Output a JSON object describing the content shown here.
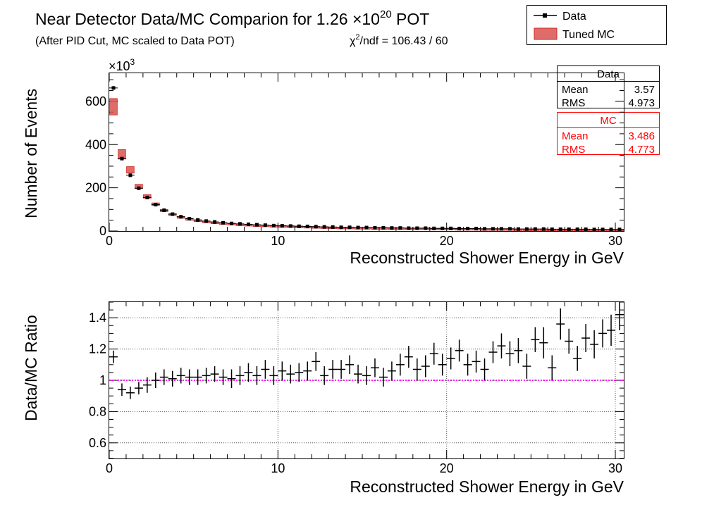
{
  "header": {
    "title_main": "Near Detector Data/MC Comparion for 1.26 ×10",
    "title_exp": "20",
    "title_tail": " POT",
    "subtitle": "(After PID Cut, MC scaled to Data POT)",
    "chi2_symbol": "χ",
    "chi2_exp": "2",
    "chi2_text": "/ndf = 106.43 / 60"
  },
  "legend": {
    "data_label": "Data",
    "mc_label": "Tuned MC"
  },
  "stats": {
    "data": {
      "title": "Data",
      "mean_label": "Mean",
      "mean": "3.57",
      "rms_label": "RMS",
      "rms": "4.973"
    },
    "mc": {
      "title": "MC",
      "mean_label": "Mean",
      "mean": "3.486",
      "rms_label": "RMS",
      "rms": "4.773"
    }
  },
  "colors": {
    "data": "#000000",
    "mc_fill": "#d9534f",
    "mc_line": "#cc0000",
    "unity_line": "#ff00ff",
    "stats_mc_text": "#ff0000"
  },
  "chart_data": [
    {
      "type": "scatter",
      "name": "spectrum",
      "xlabel": "Reconstructed Shower Energy in GeV",
      "ylabel": "Number of Events",
      "y_multiplier_label": "×10",
      "y_multiplier_exp": "3",
      "xlim": [
        0,
        30.5
      ],
      "ylim": [
        0,
        730
      ],
      "xticks": [
        0,
        10,
        20,
        30
      ],
      "yticks": [
        0,
        200,
        400,
        600
      ],
      "x": [
        0.25,
        0.75,
        1.25,
        1.75,
        2.25,
        2.75,
        3.25,
        3.75,
        4.25,
        4.75,
        5.25,
        5.75,
        6.25,
        6.75,
        7.25,
        7.75,
        8.25,
        8.75,
        9.25,
        9.75,
        10.25,
        10.75,
        11.25,
        11.75,
        12.25,
        12.75,
        13.25,
        13.75,
        14.25,
        14.75,
        15.25,
        15.75,
        16.25,
        16.75,
        17.25,
        17.75,
        18.25,
        18.75,
        19.25,
        19.75,
        20.25,
        20.75,
        21.25,
        21.75,
        22.25,
        22.75,
        23.25,
        23.75,
        24.25,
        24.75,
        25.25,
        25.75,
        26.25,
        26.75,
        27.25,
        27.75,
        28.25,
        28.75,
        29.25,
        29.75,
        30.25
      ],
      "series": [
        {
          "name": "Data",
          "values": [
            662,
            335,
            258,
            198,
            155,
            122,
            96,
            78,
            66,
            57,
            51,
            46,
            42,
            38,
            35,
            33,
            31,
            29,
            27,
            25,
            24,
            23,
            22,
            21,
            20,
            19,
            18,
            17,
            17,
            16,
            16,
            15,
            15,
            14,
            14,
            13,
            13,
            13,
            12,
            12,
            12,
            11,
            11,
            11,
            10,
            10,
            10,
            10,
            9,
            9,
            9,
            9,
            8,
            8,
            8,
            8,
            8,
            7,
            7,
            7,
            7
          ]
        },
        {
          "name": "Tuned MC",
          "values": [
            575,
            355,
            283,
            206,
            160,
            124,
            95,
            76,
            64,
            55,
            49,
            44,
            40,
            37,
            34,
            31,
            29,
            27,
            26,
            24,
            23,
            22,
            21,
            20,
            19,
            18,
            17,
            16,
            16,
            15,
            15,
            14,
            14,
            13,
            13,
            12,
            12,
            12,
            11,
            11,
            11,
            10,
            10,
            10,
            9,
            9,
            9,
            9,
            8,
            8,
            8,
            8,
            7,
            7,
            7,
            7,
            7,
            6,
            6,
            6,
            6
          ],
          "band_halfwidth": [
            38,
            22,
            15,
            10,
            8,
            6,
            5,
            4,
            3,
            3,
            3,
            2,
            2,
            2,
            2,
            2,
            2,
            2,
            2,
            2,
            2,
            2,
            2,
            2,
            2,
            2,
            2,
            2,
            2,
            2,
            2,
            2,
            2,
            2,
            2,
            2,
            2,
            2,
            2,
            2,
            2,
            2,
            2,
            2,
            2,
            2,
            2,
            2,
            2,
            2,
            2,
            2,
            2,
            2,
            2,
            2,
            2,
            2,
            2,
            2,
            2
          ]
        }
      ]
    },
    {
      "type": "scatter",
      "name": "ratio",
      "xlabel": "Reconstructed Shower Energy in GeV",
      "ylabel": "Data/MC Ratio",
      "xlim": [
        0,
        30.5
      ],
      "ylim": [
        0.5,
        1.5
      ],
      "xticks": [
        0,
        10,
        20,
        30
      ],
      "yticks": [
        0.6,
        0.8,
        1,
        1.2,
        1.4
      ],
      "ytick_labels": [
        "0.6",
        "0.8",
        "1",
        "1.2",
        "1.4"
      ],
      "reference_line": 1,
      "grid": true,
      "x": [
        0.25,
        0.75,
        1.25,
        1.75,
        2.25,
        2.75,
        3.25,
        3.75,
        4.25,
        4.75,
        5.25,
        5.75,
        6.25,
        6.75,
        7.25,
        7.75,
        8.25,
        8.75,
        9.25,
        9.75,
        10.25,
        10.75,
        11.25,
        11.75,
        12.25,
        12.75,
        13.25,
        13.75,
        14.25,
        14.75,
        15.25,
        15.75,
        16.25,
        16.75,
        17.25,
        17.75,
        18.25,
        18.75,
        19.25,
        19.75,
        20.25,
        20.75,
        21.25,
        21.75,
        22.25,
        22.75,
        23.25,
        23.75,
        24.25,
        24.75,
        25.25,
        25.75,
        26.25,
        26.75,
        27.25,
        27.75,
        28.25,
        28.75,
        29.25,
        29.75,
        30.25
      ],
      "series": [
        {
          "name": "ratio",
          "values": [
            1.15,
            0.94,
            0.92,
            0.95,
            0.97,
            1.0,
            1.02,
            1.01,
            1.03,
            1.02,
            1.02,
            1.03,
            1.04,
            1.02,
            1.01,
            1.03,
            1.05,
            1.03,
            1.07,
            1.03,
            1.06,
            1.04,
            1.05,
            1.06,
            1.12,
            1.03,
            1.07,
            1.07,
            1.1,
            1.04,
            1.03,
            1.08,
            1.02,
            1.06,
            1.1,
            1.15,
            1.07,
            1.09,
            1.17,
            1.1,
            1.14,
            1.19,
            1.1,
            1.12,
            1.07,
            1.18,
            1.22,
            1.17,
            1.19,
            1.09,
            1.26,
            1.24,
            1.08,
            1.36,
            1.25,
            1.14,
            1.27,
            1.23,
            1.3,
            1.32,
            1.42
          ],
          "errors": [
            0.04,
            0.04,
            0.04,
            0.04,
            0.05,
            0.05,
            0.05,
            0.05,
            0.05,
            0.05,
            0.05,
            0.05,
            0.05,
            0.05,
            0.06,
            0.06,
            0.06,
            0.06,
            0.06,
            0.06,
            0.06,
            0.06,
            0.06,
            0.06,
            0.06,
            0.06,
            0.06,
            0.06,
            0.06,
            0.06,
            0.06,
            0.06,
            0.06,
            0.06,
            0.07,
            0.07,
            0.07,
            0.07,
            0.07,
            0.07,
            0.07,
            0.07,
            0.07,
            0.07,
            0.07,
            0.07,
            0.08,
            0.08,
            0.08,
            0.08,
            0.08,
            0.1,
            0.08,
            0.1,
            0.08,
            0.08,
            0.09,
            0.09,
            0.09,
            0.1,
            0.1
          ]
        }
      ]
    }
  ]
}
